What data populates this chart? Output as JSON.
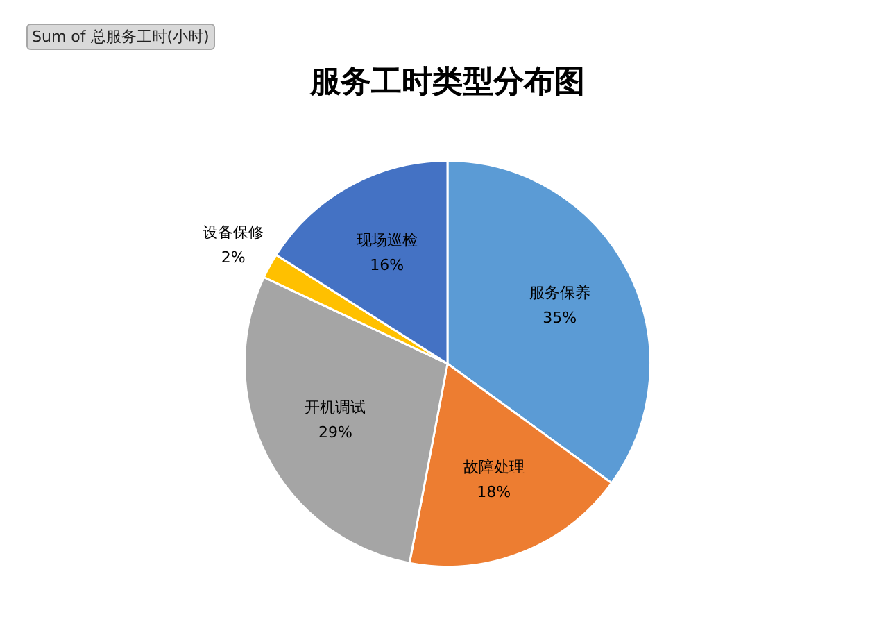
{
  "chart_data": {
    "type": "pie",
    "title": "服务工时类型分布图",
    "categories": [
      "服务保养",
      "故障处理",
      "开机调试",
      "设备保修",
      "现场巡检"
    ],
    "values": [
      35,
      18,
      29,
      2,
      16
    ],
    "colors": [
      "#5b9bd5",
      "#ed7d31",
      "#a5a5a5",
      "#ffc000",
      "#4472c4"
    ],
    "value_labels": [
      "35%",
      "18%",
      "29%",
      "2%",
      "16%"
    ],
    "annotations": [
      "Sum of 总服务工时(小时)"
    ]
  }
}
